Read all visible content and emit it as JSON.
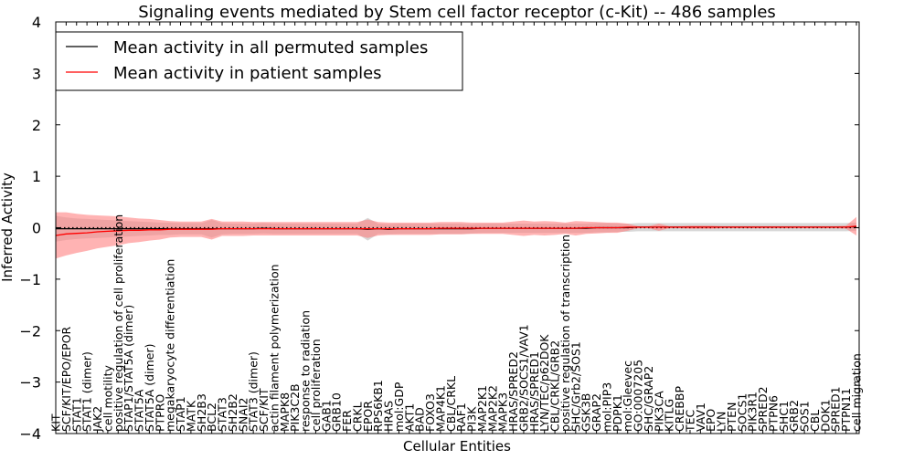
{
  "chart_data": {
    "type": "line",
    "title": "Signaling events mediated by Stem cell factor receptor (c-Kit) -- 486 samples",
    "xlabel": "Cellular Entities",
    "ylabel": "Inferred Activity",
    "ylim": [
      -4,
      4
    ],
    "yticks": [
      "4",
      "3",
      "2",
      "1",
      "0",
      "−1",
      "−2",
      "−3",
      "−4"
    ],
    "ytick_values": [
      4,
      3,
      2,
      1,
      0,
      -1,
      -2,
      -3,
      -4
    ],
    "legend_placement": "top-left",
    "legend": [
      {
        "label": "Mean activity in all permuted samples",
        "color": "#000000"
      },
      {
        "label": "Mean activity in patient samples",
        "color": "#ff0000"
      }
    ],
    "colors": {
      "patient": "#ff0000",
      "patient_band": "#ff8080",
      "permuted": "#000000",
      "permuted_band": "#c8c8c8"
    },
    "categories": [
      "KIT",
      "SCF/KIT/EPO/EPOR",
      "STAT1",
      "STAT1 (dimer)",
      "JAK2",
      "cell motility",
      "positive regulation of cell proliferation",
      "STAP1/STAT5A (dimer)",
      "STAT5A",
      "STAT5A (dimer)",
      "PTPRO",
      "megakaryocyte differentiation",
      "STAP1",
      "MATK",
      "SH2B3",
      "BCL2",
      "STAT3",
      "SH2B2",
      "SNAI2",
      "STAT3 (dimer)",
      "SCF/KIT",
      "actin filament polymerization",
      "MAPK8",
      "PIK3C2B",
      "response to radiation",
      "cell proliferation",
      "GAB1",
      "GRB10",
      "FER",
      "CRKL",
      "EPOR",
      "RPS6KB1",
      "HRAS",
      "mol:GDP",
      "AKT1",
      "BAD",
      "FOXO3",
      "MAP4K1",
      "CBL/CRKL",
      "RAF1",
      "PI3K",
      "MAP2K1",
      "MAP2K2",
      "MAPK3",
      "HRAS/SPRED2",
      "GRB2/SOCS1/VAV1",
      "HRAS/SPRED1",
      "LYN/TEC/p62DOK",
      "CBL/CRKL/GRB2",
      "positive regulation of transcription",
      "SHC/Grb2/SOS1",
      "GSK3B",
      "GRAP2",
      "mol:PIP3",
      "PDPK1",
      "mol:Gleevec",
      "GO:0007205",
      "SHC/GRAP2",
      "PIK3CA",
      "KITLG",
      "CREBBP",
      "TEC",
      "VAV1",
      "EPO",
      "LYN",
      "PTEN",
      "SOCS1",
      "PIK3R1",
      "SPRED2",
      "PTPN6",
      "SHC1",
      "GRB2",
      "SOS1",
      "CBL",
      "DOK1",
      "SPRED1",
      "PTPN11",
      "cell migration"
    ],
    "series": [
      {
        "name": "Mean activity in patient samples",
        "values": [
          -0.15,
          -0.12,
          -0.11,
          -0.1,
          -0.08,
          -0.07,
          -0.06,
          -0.05,
          -0.05,
          -0.04,
          -0.04,
          -0.03,
          -0.03,
          -0.03,
          -0.03,
          -0.03,
          -0.02,
          -0.02,
          -0.02,
          -0.02,
          -0.02,
          -0.02,
          -0.02,
          -0.02,
          -0.02,
          -0.02,
          -0.02,
          -0.02,
          -0.02,
          -0.02,
          -0.02,
          -0.02,
          -0.02,
          -0.02,
          -0.02,
          -0.02,
          -0.02,
          -0.01,
          -0.01,
          -0.01,
          -0.01,
          -0.01,
          -0.01,
          -0.01,
          -0.01,
          -0.01,
          -0.01,
          -0.01,
          -0.01,
          -0.01,
          -0.01,
          0,
          0,
          0,
          0,
          0.01,
          0.01,
          0.01,
          0.01,
          0.01,
          0.01,
          0.01,
          0.01,
          0.01,
          0.01,
          0.01,
          0.01,
          0.01,
          0.01,
          0.01,
          0.01,
          0.01,
          0.01,
          0.01,
          0.01,
          0.01,
          0.01,
          0.03
        ],
        "band_halfwidth": [
          0.45,
          0.42,
          0.38,
          0.35,
          0.32,
          0.3,
          0.28,
          0.25,
          0.23,
          0.21,
          0.19,
          0.16,
          0.15,
          0.15,
          0.15,
          0.2,
          0.14,
          0.14,
          0.14,
          0.13,
          0.13,
          0.13,
          0.13,
          0.13,
          0.13,
          0.13,
          0.13,
          0.13,
          0.13,
          0.13,
          0.18,
          0.13,
          0.12,
          0.12,
          0.12,
          0.12,
          0.12,
          0.12,
          0.12,
          0.12,
          0.11,
          0.11,
          0.11,
          0.11,
          0.13,
          0.15,
          0.13,
          0.14,
          0.13,
          0.11,
          0.14,
          0.12,
          0.11,
          0.1,
          0.1,
          0.07,
          0.02,
          0.02,
          0.07,
          0.02,
          0.02,
          0.03,
          0.03,
          0.03,
          0.02,
          0.02,
          0.02,
          0.02,
          0.02,
          0.02,
          0.02,
          0.02,
          0.02,
          0.02,
          0.02,
          0.02,
          0.03,
          0.18
        ]
      },
      {
        "name": "Mean activity in all permuted samples",
        "values": [
          -0.02,
          -0.02,
          -0.02,
          -0.02,
          -0.02,
          -0.02,
          -0.02,
          -0.02,
          -0.02,
          -0.02,
          -0.02,
          -0.02,
          -0.02,
          -0.02,
          -0.02,
          -0.02,
          -0.02,
          -0.02,
          -0.02,
          -0.02,
          -0.01,
          -0.02,
          -0.02,
          -0.02,
          -0.02,
          -0.02,
          -0.02,
          -0.02,
          -0.02,
          -0.02,
          -0.03,
          -0.02,
          -0.03,
          -0.02,
          -0.02,
          -0.02,
          -0.02,
          -0.02,
          -0.02,
          -0.02,
          -0.02,
          -0.01,
          -0.01,
          -0.01,
          -0.01,
          -0.01,
          -0.01,
          -0.01,
          -0.01,
          -0.01,
          -0.01,
          -0.01,
          0,
          0,
          0,
          0,
          0.01,
          0.01,
          0.01,
          0.01,
          0.01,
          0.01,
          0.01,
          0.01,
          0.01,
          0.01,
          0.01,
          0.01,
          0.01,
          0.01,
          0.01,
          0.01,
          0.01,
          0.01,
          0.01,
          0.01,
          0.01,
          0.02
        ],
        "band_halfwidth": [
          0.25,
          0.22,
          0.2,
          0.19,
          0.18,
          0.17,
          0.16,
          0.15,
          0.14,
          0.13,
          0.12,
          0.12,
          0.11,
          0.11,
          0.11,
          0.17,
          0.11,
          0.1,
          0.1,
          0.1,
          0.1,
          0.1,
          0.1,
          0.1,
          0.1,
          0.1,
          0.1,
          0.1,
          0.1,
          0.1,
          0.22,
          0.1,
          0.1,
          0.1,
          0.1,
          0.1,
          0.1,
          0.1,
          0.1,
          0.1,
          0.09,
          0.09,
          0.09,
          0.09,
          0.09,
          0.09,
          0.09,
          0.09,
          0.09,
          0.09,
          0.09,
          0.09,
          0.09,
          0.09,
          0.08,
          0.08,
          0.08,
          0.08,
          0.08,
          0.08,
          0.08,
          0.08,
          0.08,
          0.08,
          0.08,
          0.08,
          0.08,
          0.08,
          0.08,
          0.08,
          0.08,
          0.08,
          0.08,
          0.08,
          0.08,
          0.08,
          0.08,
          0.08
        ]
      }
    ]
  }
}
